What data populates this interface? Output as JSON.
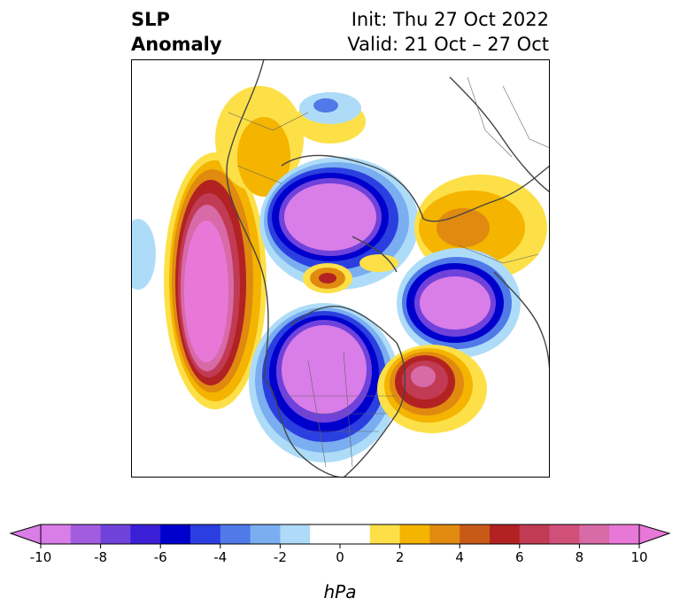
{
  "title": {
    "line1": "SLP",
    "line2": "Anomaly",
    "init": "Init: Thu 27 Oct 2022",
    "valid": "Valid: 21 Oct – 27 Oct"
  },
  "colorbar": {
    "unit": "hPa",
    "ticks": [
      "-10",
      "-8",
      "-6",
      "-4",
      "-2",
      "0",
      "2",
      "4",
      "6",
      "8",
      "10"
    ],
    "colors": [
      "#d97de8",
      "#a35ce0",
      "#7042dc",
      "#3b1fd6",
      "#0000cc",
      "#2b3fe0",
      "#4f7ae8",
      "#7aaef0",
      "#aedcf8",
      "#ffffff",
      "#ffffff",
      "#fde047",
      "#f4b400",
      "#e08a10",
      "#c85a18",
      "#b22222",
      "#c23b55",
      "#d1507a",
      "#d96aa8",
      "#e878d8"
    ]
  }
}
